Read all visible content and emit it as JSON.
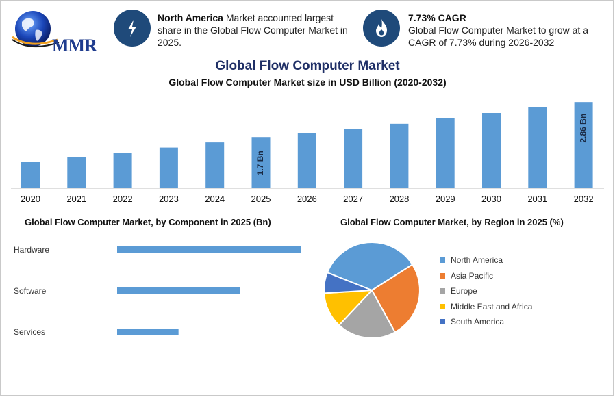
{
  "logo": {
    "text": "MMR"
  },
  "info_left": {
    "icon": "lightning-icon",
    "bold": "North America",
    "text": " Market accounted largest share in the Global Flow Computer Market in 2025."
  },
  "info_right": {
    "icon": "flame-icon",
    "bold": "7.73% CAGR",
    "text": "Global Flow Computer Market to grow at a CAGR of 7.73% during 2026-2032"
  },
  "header": {
    "title": "Global Flow Computer Market",
    "subtitle": "Global Flow Computer Market size in USD Billion (2020-2032)"
  },
  "chart_data": [
    {
      "type": "bar",
      "title": "Global Flow Computer Market size in USD Billion (2020-2032)",
      "categories": [
        "2020",
        "2021",
        "2022",
        "2023",
        "2024",
        "2025",
        "2026",
        "2027",
        "2028",
        "2029",
        "2030",
        "2031",
        "2032"
      ],
      "values": [
        0.88,
        1.04,
        1.18,
        1.35,
        1.52,
        1.7,
        1.84,
        1.97,
        2.14,
        2.32,
        2.5,
        2.69,
        2.86
      ],
      "data_labels": {
        "5": "1.7 Bn",
        "12": "2.86 Bn"
      },
      "color": "#5b9bd5",
      "ylim": [
        0,
        3.0
      ]
    },
    {
      "type": "bar",
      "orientation": "horizontal",
      "title": "Global Flow Computer Market, by Component in 2025 (Bn)",
      "categories": [
        "Hardware",
        "Software",
        "Services"
      ],
      "values": [
        0.9,
        0.6,
        0.3
      ],
      "color": "#5b9bd5",
      "xlim": [
        0,
        0.9
      ]
    },
    {
      "type": "pie",
      "title": "Global Flow Computer Market, by Region in 2025 (%)",
      "labels": [
        "North America",
        "Asia Pacific",
        "Europe",
        "Middle East and Africa",
        "South America"
      ],
      "values": [
        35,
        26,
        20,
        12,
        7
      ],
      "colors": [
        "#5b9bd5",
        "#ed7d31",
        "#a5a5a5",
        "#ffc000",
        "#4472c4"
      ]
    }
  ]
}
